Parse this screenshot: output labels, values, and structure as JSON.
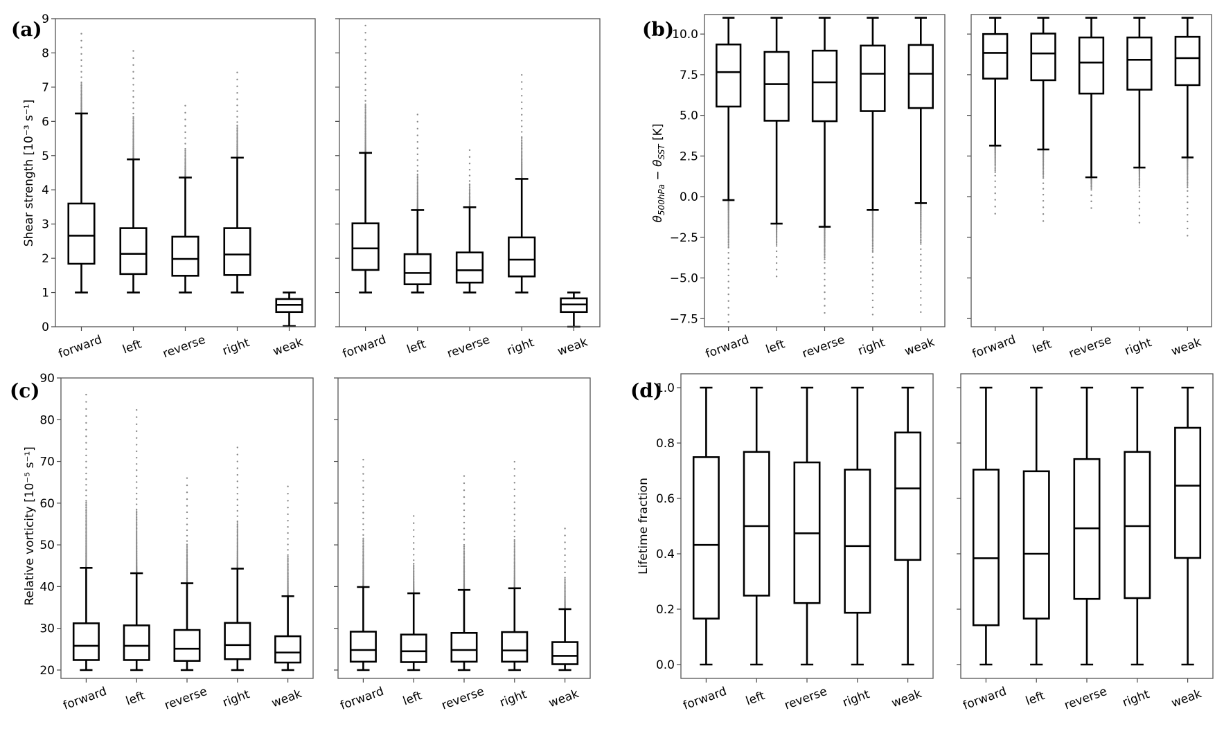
{
  "figure": {
    "categories": [
      "forward",
      "left",
      "reverse",
      "right",
      "weak"
    ]
  },
  "chart_data": [
    {
      "panel": "(a)",
      "type": "boxplot",
      "ylabel": "Shear strength [10⁻³ s⁻¹]",
      "ylim": [
        0,
        9
      ],
      "yticks": [
        0,
        1,
        2,
        3,
        4,
        5,
        6,
        7,
        8,
        9
      ],
      "ytick_labels": [
        "0",
        "1",
        "2",
        "3",
        "4",
        "5",
        "6",
        "7",
        "8",
        "9"
      ],
      "categories": [
        "forward",
        "left",
        "reverse",
        "right",
        "weak"
      ],
      "subplots": [
        {
          "name": "left",
          "boxes": [
            {
              "category": "forward",
              "whislo": 1.0,
              "q1": 1.84,
              "median": 2.66,
              "q3": 3.6,
              "whishi": 6.23,
              "flier_range": [
                6.23,
                8.7
              ]
            },
            {
              "category": "left",
              "whislo": 1.0,
              "q1": 1.54,
              "median": 2.13,
              "q3": 2.88,
              "whishi": 4.89,
              "flier_range": [
                4.89,
                8.2
              ]
            },
            {
              "category": "reverse",
              "whislo": 1.0,
              "q1": 1.49,
              "median": 1.98,
              "q3": 2.63,
              "whishi": 4.36,
              "flier_range": [
                4.36,
                6.6
              ]
            },
            {
              "category": "right",
              "whislo": 1.0,
              "q1": 1.51,
              "median": 2.11,
              "q3": 2.88,
              "whishi": 4.94,
              "flier_range": [
                4.94,
                7.5
              ]
            },
            {
              "category": "weak",
              "whislo": 0.02,
              "q1": 0.43,
              "median": 0.64,
              "q3": 0.81,
              "whishi": 1.0,
              "flier_range": null
            }
          ]
        },
        {
          "name": "right",
          "boxes": [
            {
              "category": "forward",
              "whislo": 1.0,
              "q1": 1.66,
              "median": 2.29,
              "q3": 3.02,
              "whishi": 5.08,
              "flier_range": [
                5.08,
                8.8
              ]
            },
            {
              "category": "left",
              "whislo": 1.0,
              "q1": 1.24,
              "median": 1.57,
              "q3": 2.12,
              "whishi": 3.41,
              "flier_range": [
                3.41,
                6.2
              ]
            },
            {
              "category": "reverse",
              "whislo": 1.0,
              "q1": 1.29,
              "median": 1.65,
              "q3": 2.17,
              "whishi": 3.49,
              "flier_range": [
                3.49,
                5.3
              ]
            },
            {
              "category": "right",
              "whislo": 1.0,
              "q1": 1.47,
              "median": 1.96,
              "q3": 2.61,
              "whishi": 4.32,
              "flier_range": [
                4.32,
                7.5
              ]
            },
            {
              "category": "weak",
              "whislo": 0.0,
              "q1": 0.43,
              "median": 0.65,
              "q3": 0.83,
              "whishi": 1.0,
              "flier_range": null
            }
          ]
        }
      ]
    },
    {
      "panel": "(b)",
      "type": "boxplot",
      "ylabel": "θ_500hPa − θ_SST [K]",
      "ylabel_parts": {
        "theta": "θ",
        "sub1": "500hPa",
        "minus": " − ",
        "sub2": "SST",
        "unit": " [K]"
      },
      "ylim": [
        -8.0,
        11.2
      ],
      "yticks": [
        -7.5,
        -5.0,
        -2.5,
        0.0,
        2.5,
        5.0,
        7.5,
        10.0
      ],
      "ytick_labels": [
        "−7.5",
        "−5.0",
        "−2.5",
        "0.0",
        "2.5",
        "5.0",
        "7.5",
        "10.0"
      ],
      "categories": [
        "forward",
        "left",
        "reverse",
        "right",
        "weak"
      ],
      "subplots": [
        {
          "name": "left",
          "boxes": [
            {
              "category": "forward",
              "whislo": -0.21,
              "q1": 5.54,
              "median": 7.66,
              "q3": 9.36,
              "whishi": 11.0,
              "flier_range": [
                -8.0,
                -0.21
              ]
            },
            {
              "category": "left",
              "whislo": -1.66,
              "q1": 4.67,
              "median": 6.92,
              "q3": 8.9,
              "whishi": 11.0,
              "flier_range": [
                -5.2,
                -1.66
              ]
            },
            {
              "category": "reverse",
              "whislo": -1.85,
              "q1": 4.64,
              "median": 7.03,
              "q3": 8.98,
              "whishi": 11.0,
              "flier_range": [
                -7.3,
                -1.85
              ]
            },
            {
              "category": "right",
              "whislo": -0.82,
              "q1": 5.26,
              "median": 7.56,
              "q3": 9.29,
              "whishi": 11.0,
              "flier_range": [
                -7.4,
                -0.82
              ]
            },
            {
              "category": "weak",
              "whislo": -0.4,
              "q1": 5.45,
              "median": 7.56,
              "q3": 9.33,
              "whishi": 11.0,
              "flier_range": [
                -7.1,
                -0.4
              ]
            }
          ]
        },
        {
          "name": "right",
          "boxes": [
            {
              "category": "forward",
              "whislo": 3.14,
              "q1": 7.26,
              "median": 8.84,
              "q3": 10.0,
              "whishi": 11.0,
              "flier_range": [
                -1.2,
                3.14
              ]
            },
            {
              "category": "left",
              "whislo": 2.9,
              "q1": 7.16,
              "median": 8.81,
              "q3": 10.03,
              "whishi": 11.0,
              "flier_range": [
                -1.8,
                2.9
              ]
            },
            {
              "category": "reverse",
              "whislo": 1.19,
              "q1": 6.34,
              "median": 8.25,
              "q3": 9.79,
              "whishi": 11.0,
              "flier_range": [
                -1.0,
                1.19
              ]
            },
            {
              "category": "right",
              "whislo": 1.79,
              "q1": 6.58,
              "median": 8.42,
              "q3": 9.79,
              "whishi": 11.0,
              "flier_range": [
                -1.6,
                1.79
              ]
            },
            {
              "category": "weak",
              "whislo": 2.41,
              "q1": 6.86,
              "median": 8.52,
              "q3": 9.83,
              "whishi": 11.0,
              "flier_range": [
                -2.4,
                2.41
              ]
            }
          ]
        }
      ]
    },
    {
      "panel": "(c)",
      "type": "boxplot",
      "ylabel": "Relative vorticity [10⁻⁵ s⁻¹]",
      "ylim": [
        18.0,
        90.0
      ],
      "yticks": [
        20,
        30,
        40,
        50,
        60,
        70,
        80,
        90
      ],
      "ytick_labels": [
        "20",
        "30",
        "40",
        "50",
        "60",
        "70",
        "80",
        "90"
      ],
      "categories": [
        "forward",
        "left",
        "reverse",
        "right",
        "weak"
      ],
      "subplots": [
        {
          "name": "left",
          "boxes": [
            {
              "category": "forward",
              "whislo": 20.0,
              "q1": 22.4,
              "median": 25.8,
              "q3": 31.2,
              "whishi": 44.5,
              "flier_range": [
                44.5,
                86.0
              ]
            },
            {
              "category": "left",
              "whislo": 20.0,
              "q1": 22.4,
              "median": 25.8,
              "q3": 30.7,
              "whishi": 43.2,
              "flier_range": [
                43.2,
                83.5
              ]
            },
            {
              "category": "reverse",
              "whislo": 20.0,
              "q1": 22.2,
              "median": 25.1,
              "q3": 29.6,
              "whishi": 40.8,
              "flier_range": [
                40.8,
                66.0
              ]
            },
            {
              "category": "right",
              "whislo": 20.0,
              "q1": 22.6,
              "median": 26.0,
              "q3": 31.3,
              "whishi": 44.3,
              "flier_range": [
                44.3,
                74.5
              ]
            },
            {
              "category": "weak",
              "whislo": 20.0,
              "q1": 21.8,
              "median": 24.2,
              "q3": 28.1,
              "whishi": 37.7,
              "flier_range": [
                37.7,
                64.0
              ]
            }
          ]
        },
        {
          "name": "right",
          "boxes": [
            {
              "category": "forward",
              "whislo": 20.0,
              "q1": 22.0,
              "median": 24.8,
              "q3": 29.2,
              "whishi": 39.9,
              "flier_range": [
                39.9,
                71.0
              ]
            },
            {
              "category": "left",
              "whislo": 20.0,
              "q1": 21.9,
              "median": 24.5,
              "q3": 28.5,
              "whishi": 38.4,
              "flier_range": [
                38.4,
                57.5
              ]
            },
            {
              "category": "reverse",
              "whislo": 20.0,
              "q1": 22.0,
              "median": 24.8,
              "q3": 28.9,
              "whishi": 39.2,
              "flier_range": [
                39.2,
                66.5
              ]
            },
            {
              "category": "right",
              "whislo": 20.0,
              "q1": 22.0,
              "median": 24.7,
              "q3": 29.1,
              "whishi": 39.6,
              "flier_range": [
                39.6,
                70.5
              ]
            },
            {
              "category": "weak",
              "whislo": 20.0,
              "q1": 21.4,
              "median": 23.4,
              "q3": 26.7,
              "whishi": 34.6,
              "flier_range": [
                34.6,
                54.5
              ]
            }
          ]
        }
      ]
    },
    {
      "panel": "(d)",
      "type": "boxplot",
      "ylabel": "Lifetime fraction",
      "ylim": [
        -0.05,
        1.05
      ],
      "yticks": [
        0.0,
        0.2,
        0.4,
        0.6,
        0.8,
        1.0
      ],
      "ytick_labels": [
        "0.0",
        "0.2",
        "0.4",
        "0.6",
        "0.8",
        "1.0"
      ],
      "categories": [
        "forward",
        "left",
        "reverse",
        "right",
        "weak"
      ],
      "subplots": [
        {
          "name": "left",
          "boxes": [
            {
              "category": "forward",
              "whislo": 0.0,
              "q1": 0.166,
              "median": 0.432,
              "q3": 0.749,
              "whishi": 1.0,
              "flier_range": null
            },
            {
              "category": "left",
              "whislo": 0.0,
              "q1": 0.249,
              "median": 0.5,
              "q3": 0.768,
              "whishi": 1.0,
              "flier_range": null
            },
            {
              "category": "reverse",
              "whislo": 0.0,
              "q1": 0.222,
              "median": 0.474,
              "q3": 0.73,
              "whishi": 1.0,
              "flier_range": null
            },
            {
              "category": "right",
              "whislo": 0.0,
              "q1": 0.187,
              "median": 0.428,
              "q3": 0.704,
              "whishi": 1.0,
              "flier_range": null
            },
            {
              "category": "weak",
              "whislo": 0.0,
              "q1": 0.378,
              "median": 0.636,
              "q3": 0.838,
              "whishi": 1.0,
              "flier_range": null
            }
          ]
        },
        {
          "name": "right",
          "boxes": [
            {
              "category": "forward",
              "whislo": 0.0,
              "q1": 0.142,
              "median": 0.384,
              "q3": 0.704,
              "whishi": 1.0,
              "flier_range": null
            },
            {
              "category": "left",
              "whislo": 0.0,
              "q1": 0.166,
              "median": 0.4,
              "q3": 0.698,
              "whishi": 1.0,
              "flier_range": null
            },
            {
              "category": "reverse",
              "whislo": 0.0,
              "q1": 0.237,
              "median": 0.492,
              "q3": 0.742,
              "whishi": 1.0,
              "flier_range": null
            },
            {
              "category": "right",
              "whislo": 0.0,
              "q1": 0.24,
              "median": 0.5,
              "q3": 0.768,
              "whishi": 1.0,
              "flier_range": null
            },
            {
              "category": "weak",
              "whislo": 0.0,
              "q1": 0.385,
              "median": 0.646,
              "q3": 0.855,
              "whishi": 1.0,
              "flier_range": null
            }
          ]
        }
      ]
    }
  ]
}
